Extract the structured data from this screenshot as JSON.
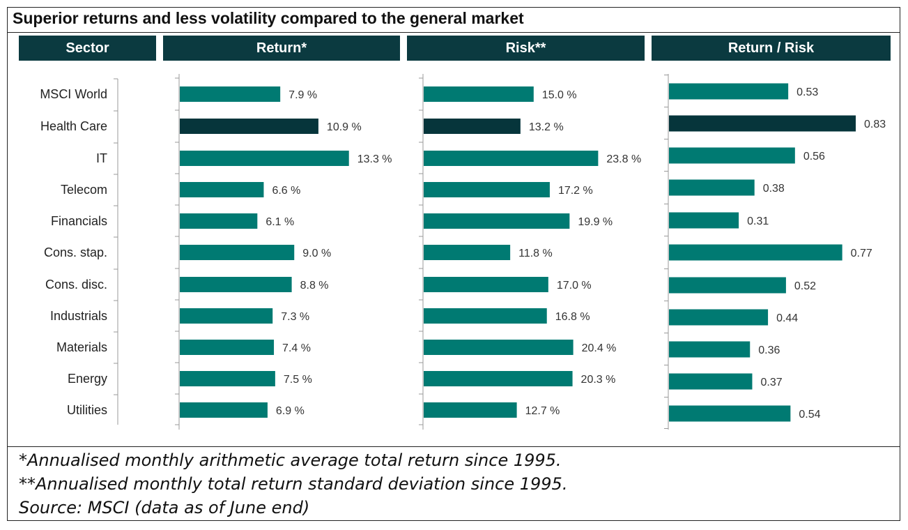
{
  "title": "Superior returns and less volatility compared to the general market",
  "headers": {
    "sector": "Sector",
    "return": "Return*",
    "risk": "Risk**",
    "ratio": "Return / Risk"
  },
  "colors": {
    "header_bg": "#0b3a40",
    "bar": "#007a72",
    "highlight": "#06353b"
  },
  "chart_data": [
    {
      "type": "bar",
      "orientation": "horizontal",
      "title": "Return*",
      "categories": [
        "MSCI World",
        "Health Care",
        "IT",
        "Telecom",
        "Financials",
        "Cons. stap.",
        "Cons. disc.",
        "Industrials",
        "Materials",
        "Energy",
        "Utilities"
      ],
      "values": [
        7.9,
        10.9,
        13.3,
        6.6,
        6.1,
        9.0,
        8.8,
        7.3,
        7.4,
        7.5,
        6.9
      ],
      "labels": [
        "7.9 %",
        "10.9 %",
        "13.3 %",
        "6.6 %",
        "6.1 %",
        "9.0 %",
        "8.8 %",
        "7.3 %",
        "7.4 %",
        "7.5 %",
        "6.9 %"
      ],
      "highlight": "Health Care"
    },
    {
      "type": "bar",
      "orientation": "horizontal",
      "title": "Risk**",
      "categories": [
        "MSCI World",
        "Health Care",
        "IT",
        "Telecom",
        "Financials",
        "Cons. stap.",
        "Cons. disc.",
        "Industrials",
        "Materials",
        "Energy",
        "Utilities"
      ],
      "values": [
        15.0,
        13.2,
        23.8,
        17.2,
        19.9,
        11.8,
        17.0,
        16.8,
        20.4,
        20.3,
        12.7
      ],
      "labels": [
        "15.0 %",
        "13.2 %",
        "23.8 %",
        "17.2 %",
        "19.9 %",
        "11.8 %",
        "17.0 %",
        "16.8 %",
        "20.4 %",
        "20.3 %",
        "12.7 %"
      ],
      "highlight": "Health Care"
    },
    {
      "type": "bar",
      "orientation": "horizontal",
      "title": "Return / Risk",
      "categories": [
        "MSCI World",
        "Health Care",
        "IT",
        "Telecom",
        "Financials",
        "Cons. stap.",
        "Cons. disc.",
        "Industrials",
        "Materials",
        "Energy",
        "Utilities"
      ],
      "values": [
        0.53,
        0.83,
        0.56,
        0.38,
        0.31,
        0.77,
        0.52,
        0.44,
        0.36,
        0.37,
        0.54
      ],
      "labels": [
        "0.53",
        "0.83",
        "0.56",
        "0.38",
        "0.31",
        "0.77",
        "0.52",
        "0.44",
        "0.36",
        "0.37",
        "0.54"
      ],
      "highlight": "Health Care"
    }
  ],
  "footnotes": [
    "*Annualised monthly arithmetic average total return since 1995.",
    "**Annualised monthly total return standard deviation since 1995.",
    "Source: MSCI (data as of June end)"
  ]
}
